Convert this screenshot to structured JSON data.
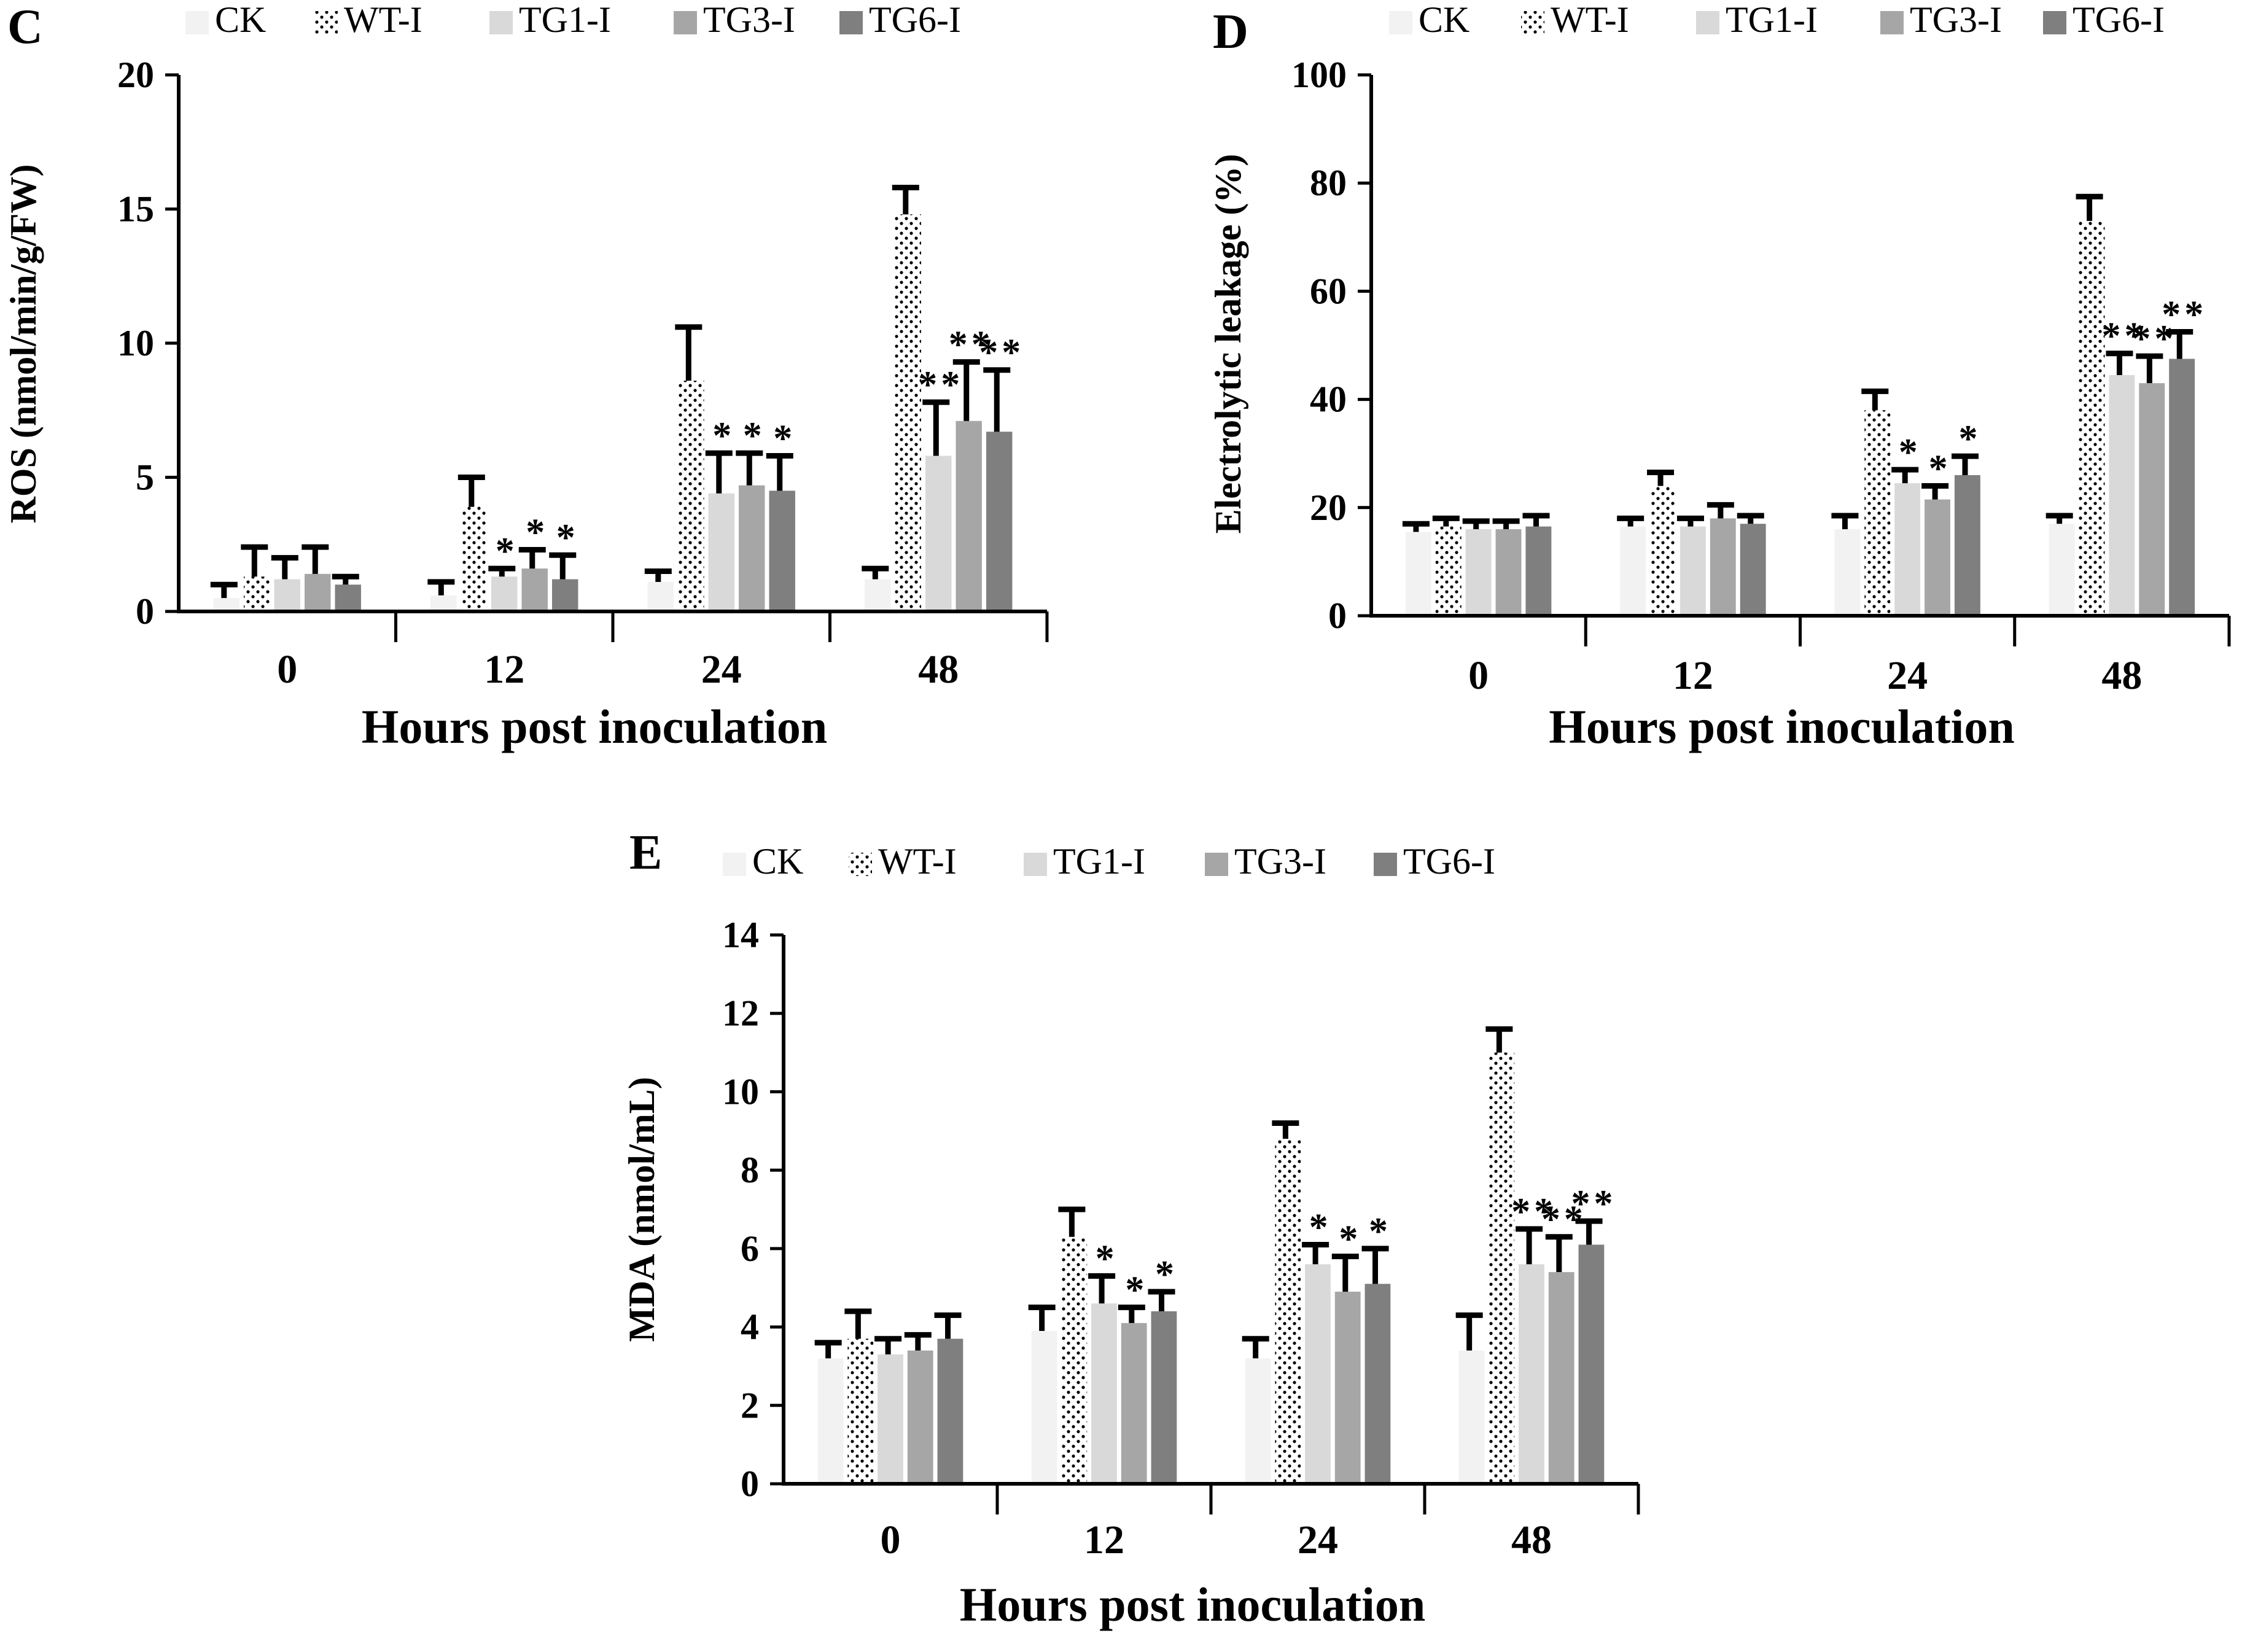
{
  "chart_data": [
    {
      "panel": "C",
      "type": "bar",
      "xlabel": "Hours post inoculation",
      "ylabel": "ROS (nmol/min/g/FW)",
      "ylim": [
        0,
        20
      ],
      "yticks": [
        0,
        5,
        10,
        15,
        20
      ],
      "categories": [
        "0",
        "12",
        "24",
        "48"
      ],
      "legend_position": "top",
      "grid": false,
      "series": [
        {
          "name": "CK",
          "values": [
            0.5,
            0.6,
            1.1,
            1.2
          ],
          "errors": [
            0.5,
            0.5,
            0.4,
            0.4
          ],
          "marks": [
            "",
            "",
            "",
            ""
          ]
        },
        {
          "name": "WT-I",
          "values": [
            1.3,
            3.9,
            8.6,
            14.8
          ],
          "errors": [
            1.1,
            1.1,
            2.0,
            1.0
          ],
          "marks": [
            "",
            "",
            "",
            ""
          ]
        },
        {
          "name": "TG1-I",
          "values": [
            1.2,
            1.3,
            4.4,
            5.8
          ],
          "errors": [
            0.8,
            0.3,
            1.5,
            2.0
          ],
          "marks": [
            "",
            "*",
            "*",
            "**"
          ]
        },
        {
          "name": "TG3-I",
          "values": [
            1.4,
            1.6,
            4.7,
            7.1
          ],
          "errors": [
            1.0,
            0.7,
            1.2,
            2.2
          ],
          "marks": [
            "",
            "*",
            "*",
            "**"
          ]
        },
        {
          "name": "TG6-I",
          "values": [
            1.0,
            1.2,
            4.5,
            6.7
          ],
          "errors": [
            0.3,
            0.9,
            1.3,
            2.3
          ],
          "marks": [
            "",
            "*",
            "*",
            "**"
          ]
        }
      ]
    },
    {
      "panel": "D",
      "type": "bar",
      "xlabel": "Hours post inoculation",
      "ylabel": "Electrolytic leakage (%)",
      "ylim": [
        0,
        100
      ],
      "yticks": [
        0,
        20,
        40,
        60,
        80,
        100
      ],
      "categories": [
        "0",
        "12",
        "24",
        "48"
      ],
      "legend_position": "top",
      "grid": false,
      "series": [
        {
          "name": "CK",
          "values": [
            15.5,
            16.5,
            16.0,
            17.0
          ],
          "errors": [
            1.5,
            1.5,
            2.5,
            1.5
          ],
          "marks": [
            "",
            "",
            "",
            ""
          ]
        },
        {
          "name": "WT-I",
          "values": [
            16.5,
            24.0,
            38.0,
            73.0
          ],
          "errors": [
            1.5,
            2.5,
            3.5,
            4.5
          ],
          "marks": [
            "",
            "",
            "",
            ""
          ]
        },
        {
          "name": "TG1-I",
          "values": [
            16.0,
            16.5,
            24.5,
            44.5
          ],
          "errors": [
            1.5,
            1.5,
            2.5,
            4.0
          ],
          "marks": [
            "",
            "",
            "*",
            "**"
          ]
        },
        {
          "name": "TG3-I",
          "values": [
            16.0,
            18.0,
            21.5,
            43.0
          ],
          "errors": [
            1.5,
            2.5,
            2.5,
            5.0
          ],
          "marks": [
            "",
            "",
            "*",
            "**"
          ]
        },
        {
          "name": "TG6-I",
          "values": [
            16.5,
            17.0,
            26.0,
            47.5
          ],
          "errors": [
            2.0,
            1.5,
            3.5,
            5.0
          ],
          "marks": [
            "",
            "",
            "*",
            "**"
          ]
        }
      ]
    },
    {
      "panel": "E",
      "type": "bar",
      "xlabel": "Hours post inoculation",
      "ylabel": "MDA (nmol/mL)",
      "ylim": [
        0,
        14
      ],
      "yticks": [
        0,
        2,
        4,
        6,
        8,
        10,
        12,
        14
      ],
      "categories": [
        "0",
        "12",
        "24",
        "48"
      ],
      "legend_position": "top",
      "grid": false,
      "series": [
        {
          "name": "CK",
          "values": [
            3.2,
            3.9,
            3.2,
            3.4
          ],
          "errors": [
            0.4,
            0.6,
            0.5,
            0.9
          ],
          "marks": [
            "",
            "",
            "",
            ""
          ]
        },
        {
          "name": "WT-I",
          "values": [
            3.7,
            6.3,
            8.8,
            11.0
          ],
          "errors": [
            0.7,
            0.7,
            0.4,
            0.6
          ],
          "marks": [
            "",
            "",
            "",
            ""
          ]
        },
        {
          "name": "TG1-I",
          "values": [
            3.3,
            4.6,
            5.6,
            5.6
          ],
          "errors": [
            0.4,
            0.7,
            0.5,
            0.9
          ],
          "marks": [
            "",
            "*",
            "*",
            "**"
          ]
        },
        {
          "name": "TG3-I",
          "values": [
            3.4,
            4.1,
            4.9,
            5.4
          ],
          "errors": [
            0.4,
            0.4,
            0.9,
            0.9
          ],
          "marks": [
            "",
            "*",
            "*",
            "**"
          ]
        },
        {
          "name": "TG6-I",
          "values": [
            3.7,
            4.4,
            5.1,
            6.1
          ],
          "errors": [
            0.6,
            0.5,
            0.9,
            0.6
          ],
          "marks": [
            "",
            "*",
            "*",
            "**"
          ]
        }
      ]
    }
  ],
  "series_styles": [
    {
      "name": "CK",
      "color": "#f2f2f2",
      "pattern": "solid"
    },
    {
      "name": "WT-I",
      "color": "#ffffff",
      "pattern": "dots"
    },
    {
      "name": "TG1-I",
      "color": "#d9d9d9",
      "pattern": "solid"
    },
    {
      "name": "TG3-I",
      "color": "#a6a6a6",
      "pattern": "solid"
    },
    {
      "name": "TG6-I",
      "color": "#7f7f7f",
      "pattern": "solid"
    }
  ]
}
